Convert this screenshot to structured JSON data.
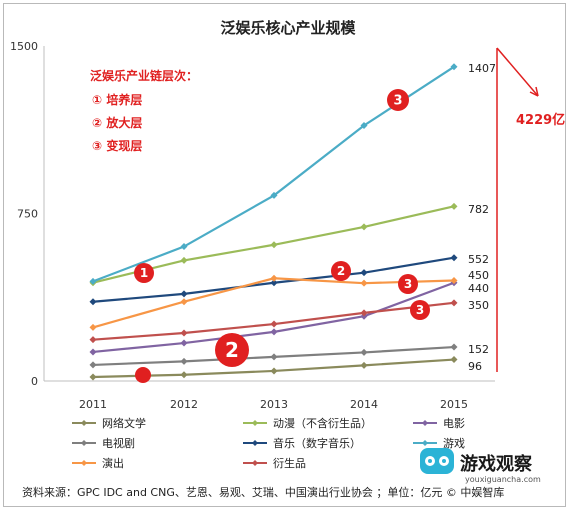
{
  "chart_data": {
    "type": "line",
    "title": "泛娱乐核心产业规模",
    "x": [
      "2011",
      "2012",
      "2013",
      "2014",
      "2015"
    ],
    "ylim": [
      0,
      1500
    ],
    "yticks": [
      0,
      750,
      1500
    ],
    "grid": false,
    "legend_position": "bottom",
    "series": [
      {
        "name": "网络文学",
        "color": "#8a8a5c",
        "values": [
          18,
          28,
          45,
          70,
          96
        ]
      },
      {
        "name": "动漫（不含衍生品）",
        "color": "#9bbb59",
        "values": [
          440,
          540,
          610,
          690,
          782
        ]
      },
      {
        "name": "电影",
        "color": "#8064a2",
        "values": [
          130,
          170,
          220,
          290,
          440
        ]
      },
      {
        "name": "电视剧",
        "color": "#7f7f7f",
        "values": [
          72,
          88,
          108,
          128,
          152
        ]
      },
      {
        "name": "音乐（数字音乐）",
        "color": "#1f497d",
        "values": [
          355,
          390,
          440,
          485,
          552
        ]
      },
      {
        "name": "游戏",
        "color": "#4bacc6",
        "values": [
          446,
          602,
          831,
          1144,
          1407
        ]
      },
      {
        "name": "演出",
        "color": "#f79646",
        "values": [
          240,
          355,
          460,
          438,
          450
        ]
      },
      {
        "name": "衍生品",
        "color": "#c0504d",
        "values": [
          185,
          215,
          255,
          305,
          350
        ]
      }
    ],
    "end_labels": [
      "1407",
      "782",
      "552",
      "450",
      "440",
      "350",
      "152",
      "96"
    ],
    "annotations": {
      "heading": "泛娱乐产业链层次：",
      "layers": [
        "① 培养层",
        "② 放大层",
        "③ 变现层"
      ],
      "total": "4229亿",
      "badges": [
        "1",
        "2",
        "2",
        "3",
        "3",
        "3"
      ],
      "badge_color": "#e02020"
    }
  },
  "footer_text": "资料来源：GPC IDC and CNG、艺恩、易观、艾瑞、中国演出行业协会 ；单位：亿元    © 中娱智库",
  "watermark": {
    "brand": "游戏观察",
    "site": "youxiguancha.com"
  }
}
